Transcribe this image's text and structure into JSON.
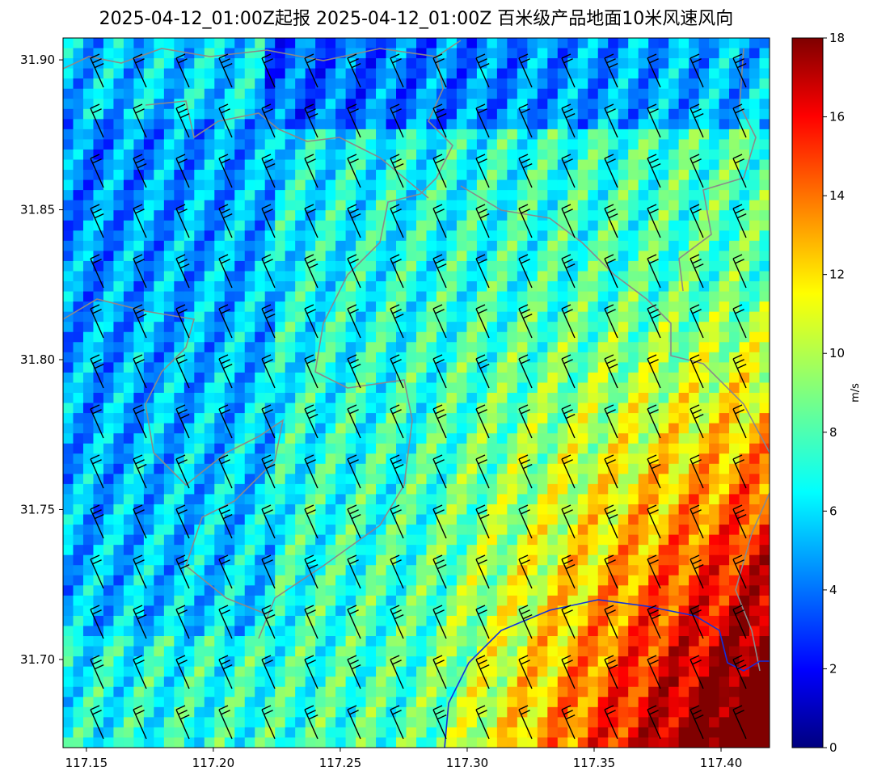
{
  "title": "2025-04-12_01:00Z起报 2025-04-12_01:00Z 百米级产品地面10米风速风向",
  "map": {
    "xlim": [
      117.1408,
      117.4191
    ],
    "ylim": [
      31.6706,
      31.9073
    ],
    "xticks": [
      117.15,
      {
        "value": 117.2,
        "label": "117.20"
      },
      117.25,
      {
        "value": 117.3,
        "label": "117.30"
      },
      117.35,
      {
        "value": 117.4,
        "label": "117.40"
      }
    ],
    "yticks": [
      {
        "value": 31.7,
        "label": "31.70"
      },
      31.75,
      {
        "value": 31.8,
        "label": "31.80"
      },
      31.85,
      {
        "value": 31.9,
        "label": "31.90"
      }
    ]
  },
  "colorbar": {
    "label": "m/s",
    "lim": [
      0,
      18
    ],
    "ticks": [
      0,
      2,
      4,
      6,
      8,
      10,
      12,
      14,
      16,
      18
    ]
  }
}
